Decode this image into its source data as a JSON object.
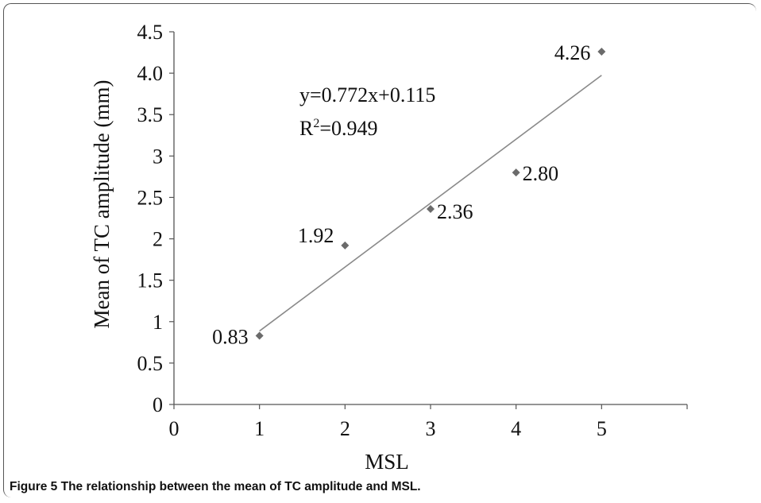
{
  "chart_data": {
    "type": "scatter",
    "xlabel": "MSL",
    "ylabel": "Mean of TC amplitude (mm)",
    "x_ticks": [
      "0",
      "1",
      "2",
      "3",
      "4",
      "5"
    ],
    "y_ticks": [
      "0",
      "0.5",
      "1",
      "1.5",
      "2",
      "2.5",
      "3",
      "3.5",
      "4.0",
      "4.5"
    ],
    "xlim": [
      0,
      6
    ],
    "ylim": [
      0,
      4.5
    ],
    "grid": false,
    "points": [
      {
        "x": 1,
        "y": 0.83,
        "label": "0.83"
      },
      {
        "x": 2,
        "y": 1.92,
        "label": "1.92"
      },
      {
        "x": 3,
        "y": 2.36,
        "label": "2.36"
      },
      {
        "x": 4,
        "y": 2.8,
        "label": "2.80"
      },
      {
        "x": 5,
        "y": 4.26,
        "label": "4.26"
      }
    ],
    "trendline": {
      "slope": 0.772,
      "intercept": 0.115,
      "x_range": [
        1,
        5
      ],
      "equation": "y=0.772x+0.115",
      "r2_prefix": "R",
      "r2_sup": "2",
      "r2_value": "=0.949"
    },
    "colors": {
      "marker": "#6b6b6b",
      "trendline": "#8a8a8a",
      "axis": "#555555"
    }
  },
  "caption": {
    "number": "Figure 5",
    "text": "The relationship between the mean of TC amplitude and MSL."
  }
}
